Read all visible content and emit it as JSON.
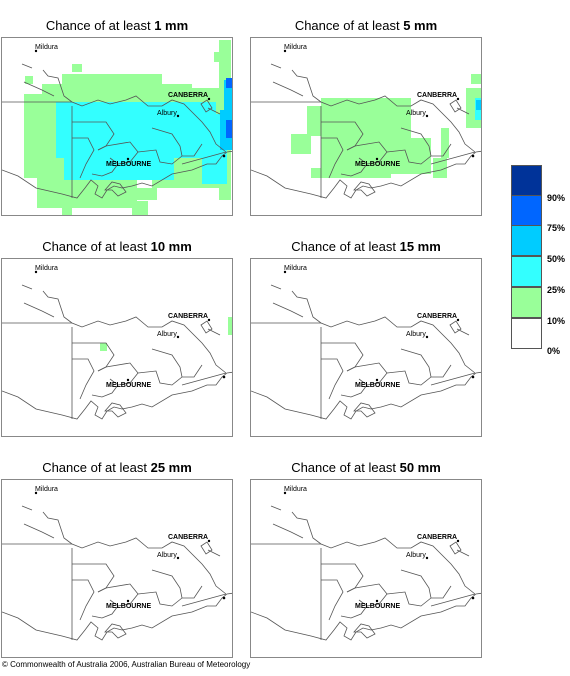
{
  "panels": [
    {
      "title_prefix": "Chance of at least ",
      "amount": "1 mm"
    },
    {
      "title_prefix": "Chance of at least ",
      "amount": "5 mm"
    },
    {
      "title_prefix": "Chance of at least ",
      "amount": "10 mm"
    },
    {
      "title_prefix": "Chance of at least ",
      "amount": "15 mm"
    },
    {
      "title_prefix": "Chance of at least ",
      "amount": "25 mm"
    },
    {
      "title_prefix": "Chance of at least ",
      "amount": "50 mm"
    }
  ],
  "places": {
    "mildura": "Mildura",
    "canberra": "CANBERRA",
    "albury": "Albury",
    "melbourne": "MELBOURNE"
  },
  "legend": {
    "labels": [
      "90%",
      "75%",
      "50%",
      "25%",
      "10%",
      "0%"
    ],
    "colors": [
      "#003399",
      "#0066ff",
      "#00ccff",
      "#33ffff",
      "#99ff99",
      "#ffffff"
    ]
  },
  "copyright": "© Commonwealth of Australia 2006, Australian Bureau of Meteorology"
}
